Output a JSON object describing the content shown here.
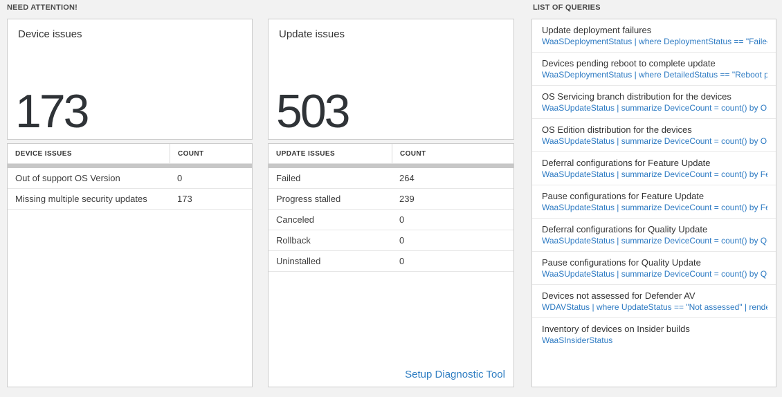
{
  "colors": {
    "background": "#f2f2f2",
    "panel_border": "#cccccc",
    "query_blue": "#2b79c2",
    "link_blue": "#2e7dc2",
    "big_number": "#2f3337",
    "scroll_shadow_gray": "#c7c7c7"
  },
  "sections": {
    "need_attention": "NEED ATTENTION!",
    "list_of_queries": "LIST OF QUERIES"
  },
  "device_card": {
    "title": "Device issues",
    "count": "173"
  },
  "device_table": {
    "headers": [
      "DEVICE ISSUES",
      "COUNT"
    ],
    "rows": [
      {
        "label": "Out of support OS Version",
        "count": "0"
      },
      {
        "label": "Missing multiple security updates",
        "count": "173"
      }
    ]
  },
  "update_card": {
    "title": "Update issues",
    "count": "503"
  },
  "update_table": {
    "headers": [
      "UPDATE ISSUES",
      "COUNT"
    ],
    "rows": [
      {
        "label": "Failed",
        "count": "264"
      },
      {
        "label": "Progress stalled",
        "count": "239"
      },
      {
        "label": "Canceled",
        "count": "0"
      },
      {
        "label": "Rollback",
        "count": "0"
      },
      {
        "label": "Uninstalled",
        "count": "0"
      }
    ],
    "footer_link": "Setup Diagnostic Tool"
  },
  "queries": {
    "items": [
      {
        "title": "Update deployment failures",
        "query": "WaaSDeploymentStatus | where DeploymentStatus == \"Failed\" |..."
      },
      {
        "title": "Devices pending reboot to complete update",
        "query": "WaaSDeploymentStatus | where DetailedStatus == \"Reboot pend..."
      },
      {
        "title": "OS Servicing branch distribution for the devices",
        "query": "WaaSUpdateStatus | summarize DeviceCount = count() by OSSer..."
      },
      {
        "title": "OS Edition distribution for the devices",
        "query": "WaaSUpdateStatus | summarize DeviceCount = count() by OSEdit..."
      },
      {
        "title": "Deferral configurations for Feature Update",
        "query": "WaaSUpdateStatus | summarize DeviceCount = count() by Featur..."
      },
      {
        "title": "Pause configurations for Feature Update",
        "query": "WaaSUpdateStatus | summarize DeviceCount = count() by Featur..."
      },
      {
        "title": "Deferral configurations for Quality Update",
        "query": "WaaSUpdateStatus | summarize DeviceCount = count() by Qualit..."
      },
      {
        "title": "Pause configurations for Quality Update",
        "query": "WaaSUpdateStatus | summarize DeviceCount = count() by Qualit..."
      },
      {
        "title": "Devices not assessed for Defender AV",
        "query": "WDAVStatus | where UpdateStatus == \"Not assessed\" | render ta..."
      },
      {
        "title": "Inventory of devices on Insider builds",
        "query": "WaaSInsiderStatus"
      }
    ]
  }
}
